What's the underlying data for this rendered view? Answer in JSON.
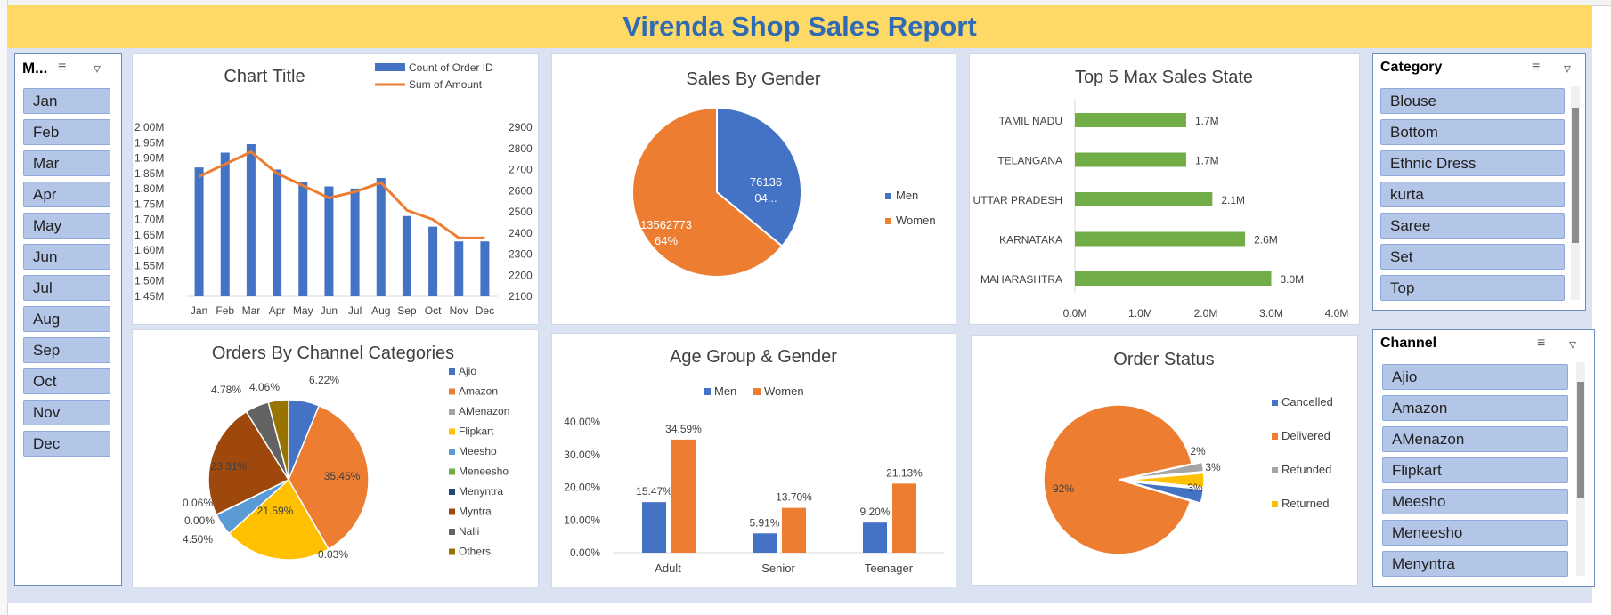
{
  "report_title": "Virenda Shop Sales Report",
  "month_slicer": {
    "header": "M...",
    "items": [
      "Jan",
      "Feb",
      "Mar",
      "Apr",
      "May",
      "Jun",
      "Jul",
      "Aug",
      "Sep",
      "Oct",
      "Nov",
      "Dec"
    ]
  },
  "category_slicer": {
    "header": "Category",
    "items": [
      "Blouse",
      "Bottom",
      "Ethnic Dress",
      "kurta",
      "Saree",
      "Set",
      "Top"
    ]
  },
  "channel_slicer": {
    "header": "Channel",
    "items": [
      "Ajio",
      "Amazon",
      "AMenazon",
      "Flipkart",
      "Meesho",
      "Meneesho",
      "Menyntra"
    ]
  },
  "colors": {
    "blue": "#4472c4",
    "orange": "#ed7d31",
    "gray": "#a5a5a5",
    "yellow": "#ffc000",
    "lightblue": "#5b9bd5",
    "green": "#70ad47",
    "darkblue": "#264478",
    "brown": "#9e480e",
    "darkgray": "#636363",
    "olive": "#997300",
    "title_yellow": "#ffd966",
    "title_blue": "#2f6bb3"
  },
  "chart_data": [
    {
      "id": "monthly",
      "type": "bar",
      "title": "Chart Title",
      "categories": [
        "Jan",
        "Feb",
        "Mar",
        "Apr",
        "May",
        "Jun",
        "Jul",
        "Aug",
        "Sep",
        "Oct",
        "Nov",
        "Dec"
      ],
      "series": [
        {
          "name": "Count of Order ID",
          "type": "bar",
          "axis": "right",
          "values": [
            2710,
            2780,
            2820,
            2700,
            2640,
            2620,
            2610,
            2660,
            2480,
            2430,
            2360,
            2360
          ]
        },
        {
          "name": "Sum of Amount",
          "type": "line",
          "axis": "left",
          "values": [
            1.84,
            1.88,
            1.92,
            1.85,
            1.81,
            1.77,
            1.79,
            1.82,
            1.73,
            1.7,
            1.64,
            1.64
          ]
        }
      ],
      "left_ticks": [
        "2.00M",
        "1.95M",
        "1.90M",
        "1.85M",
        "1.80M",
        "1.75M",
        "1.70M",
        "1.65M",
        "1.60M",
        "1.55M",
        "1.50M",
        "1.45M"
      ],
      "left_ylim": [
        1.45,
        2.0
      ],
      "right_ticks": [
        "2900",
        "2800",
        "2700",
        "2600",
        "2500",
        "2400",
        "2300",
        "2200",
        "2100"
      ],
      "right_ylim": [
        2100,
        2900
      ],
      "legend": "top-right"
    },
    {
      "id": "gender",
      "type": "pie",
      "title": "Sales By Gender",
      "labels": [
        "Men",
        "Women"
      ],
      "values": [
        36,
        64
      ],
      "data_labels": [
        [
          "76136",
          "04..."
        ],
        [
          "13562773",
          "64%"
        ]
      ],
      "legend": "right"
    },
    {
      "id": "states",
      "type": "bar",
      "orientation": "horizontal",
      "title": "Top 5 Max Sales State",
      "categories": [
        "TAMIL NADU",
        "TELANGANA",
        "UTTAR PRADESH",
        "KARNATAKA",
        "MAHARASHTRA"
      ],
      "values": [
        1.7,
        1.7,
        2.1,
        2.6,
        3.0
      ],
      "data_labels": [
        "1.7M",
        "1.7M",
        "2.1M",
        "2.6M",
        "3.0M"
      ],
      "x_ticks": [
        "0.0M",
        "1.0M",
        "2.0M",
        "3.0M",
        "4.0M"
      ],
      "xlim": [
        0,
        4
      ]
    },
    {
      "id": "channels",
      "type": "pie",
      "title": "Orders By Channel Categories",
      "labels": [
        "Ajio",
        "Amazon",
        "AMenazon",
        "Flipkart",
        "Meesho",
        "Meneesho",
        "Menyntra",
        "Myntra",
        "Nalli",
        "Others"
      ],
      "values": [
        6.22,
        35.45,
        0.03,
        21.59,
        4.5,
        0.0,
        0.06,
        23.31,
        4.78,
        4.06
      ],
      "data_labels": [
        "6.22%",
        "35.45%",
        "0.03%",
        "21.59%",
        "4.50%",
        "0.00%",
        "0.06%",
        "23.31%",
        "4.78%",
        "4.06%"
      ],
      "legend": "right"
    },
    {
      "id": "age",
      "type": "bar",
      "title": "Age Group & Gender",
      "categories": [
        "Adult",
        "Senior",
        "Teenager"
      ],
      "series": [
        {
          "name": "Men",
          "values": [
            15.47,
            5.91,
            9.2
          ]
        },
        {
          "name": "Women",
          "values": [
            34.59,
            13.7,
            21.13
          ]
        }
      ],
      "data_labels": [
        [
          "15.47%",
          "5.91%",
          "9.20%"
        ],
        [
          "34.59%",
          "13.70%",
          "21.13%"
        ]
      ],
      "y_ticks": [
        "40.00%",
        "30.00%",
        "20.00%",
        "10.00%",
        "0.00%"
      ],
      "ylim": [
        0,
        40
      ],
      "legend": "top"
    },
    {
      "id": "status",
      "type": "pie",
      "title": "Order Status",
      "labels": [
        "Cancelled",
        "Delivered",
        "Refunded",
        "Returned"
      ],
      "values": [
        3,
        92,
        2,
        3
      ],
      "data_labels": [
        "3%",
        "92%",
        "2%",
        "3%"
      ],
      "legend": "right"
    }
  ]
}
